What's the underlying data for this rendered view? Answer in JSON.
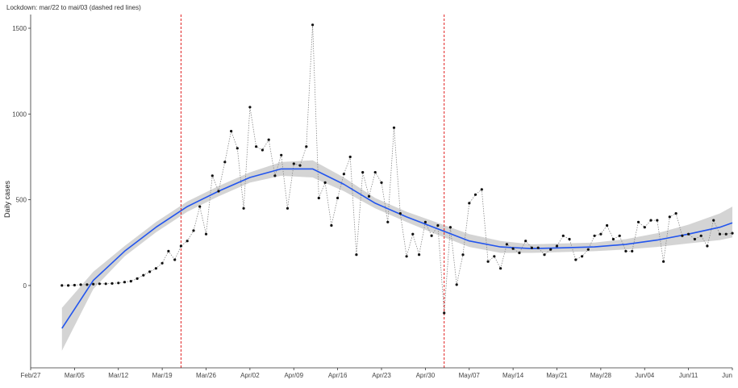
{
  "chart_data": {
    "type": "scatter",
    "title": "Lockdown: mar/22 to mai/03 (dashed red lines)",
    "xlabel": "",
    "ylabel": "Daily cases",
    "x_range": [
      "2020-02-27",
      "2020-06-18"
    ],
    "ylim": [
      -480,
      1580
    ],
    "grid": false,
    "legend": "none",
    "x_ticks": [
      {
        "date": "2020-02-27",
        "label": "Feb/27"
      },
      {
        "date": "2020-03-05",
        "label": "Mar/05"
      },
      {
        "date": "2020-03-12",
        "label": "Mar/12"
      },
      {
        "date": "2020-03-19",
        "label": "Mar/19"
      },
      {
        "date": "2020-03-26",
        "label": "Mar/26"
      },
      {
        "date": "2020-04-02",
        "label": "Apr/02"
      },
      {
        "date": "2020-04-09",
        "label": "Apr/09"
      },
      {
        "date": "2020-04-16",
        "label": "Apr/16"
      },
      {
        "date": "2020-04-23",
        "label": "Apr/23"
      },
      {
        "date": "2020-04-30",
        "label": "Apr/30"
      },
      {
        "date": "2020-05-07",
        "label": "May/07"
      },
      {
        "date": "2020-05-14",
        "label": "May/14"
      },
      {
        "date": "2020-05-21",
        "label": "May/21"
      },
      {
        "date": "2020-05-28",
        "label": "May/28"
      },
      {
        "date": "2020-06-04",
        "label": "Jun/04"
      },
      {
        "date": "2020-06-11",
        "label": "Jun/11"
      },
      {
        "date": "2020-06-18",
        "label": "Jun"
      }
    ],
    "y_ticks": [
      0,
      500,
      1000,
      1500
    ],
    "vlines": [
      {
        "date": "2020-03-22",
        "color": "#e02020",
        "style": "dashed"
      },
      {
        "date": "2020-05-03",
        "color": "#e02020",
        "style": "dashed"
      }
    ],
    "colors": {
      "points": "#111111",
      "connector": "#888888",
      "smooth": "#2255ee",
      "band": "#cccccc"
    },
    "series": [
      {
        "type": "points",
        "x": [
          "2020-03-03",
          "2020-03-04",
          "2020-03-05",
          "2020-03-06",
          "2020-03-07",
          "2020-03-08",
          "2020-03-09",
          "2020-03-10",
          "2020-03-11",
          "2020-03-12",
          "2020-03-13",
          "2020-03-14",
          "2020-03-15",
          "2020-03-16",
          "2020-03-17",
          "2020-03-18",
          "2020-03-19",
          "2020-03-20",
          "2020-03-21",
          "2020-03-22",
          "2020-03-23",
          "2020-03-24",
          "2020-03-25",
          "2020-03-26",
          "2020-03-27",
          "2020-03-28",
          "2020-03-29",
          "2020-03-30",
          "2020-03-31",
          "2020-04-01",
          "2020-04-02",
          "2020-04-03",
          "2020-04-04",
          "2020-04-05",
          "2020-04-06",
          "2020-04-07",
          "2020-04-08",
          "2020-04-09",
          "2020-04-10",
          "2020-04-11",
          "2020-04-12",
          "2020-04-13",
          "2020-04-14",
          "2020-04-15",
          "2020-04-16",
          "2020-04-17",
          "2020-04-18",
          "2020-04-19",
          "2020-04-20",
          "2020-04-21",
          "2020-04-22",
          "2020-04-23",
          "2020-04-24",
          "2020-04-25",
          "2020-04-26",
          "2020-04-27",
          "2020-04-28",
          "2020-04-29",
          "2020-04-30",
          "2020-05-01",
          "2020-05-02",
          "2020-05-03",
          "2020-05-04",
          "2020-05-05",
          "2020-05-06",
          "2020-05-07",
          "2020-05-08",
          "2020-05-09",
          "2020-05-10",
          "2020-05-11",
          "2020-05-12",
          "2020-05-13",
          "2020-05-14",
          "2020-05-15",
          "2020-05-16",
          "2020-05-17",
          "2020-05-18",
          "2020-05-19",
          "2020-05-20",
          "2020-05-21",
          "2020-05-22",
          "2020-05-23",
          "2020-05-24",
          "2020-05-25",
          "2020-05-26",
          "2020-05-27",
          "2020-05-28",
          "2020-05-29",
          "2020-05-30",
          "2020-05-31",
          "2020-06-01",
          "2020-06-02",
          "2020-06-03",
          "2020-06-04",
          "2020-06-05",
          "2020-06-06",
          "2020-06-07",
          "2020-06-08",
          "2020-06-09",
          "2020-06-10",
          "2020-06-11",
          "2020-06-12",
          "2020-06-13",
          "2020-06-14",
          "2020-06-15",
          "2020-06-16",
          "2020-06-17",
          "2020-06-18"
        ],
        "y": [
          0,
          0,
          2,
          5,
          5,
          8,
          10,
          10,
          12,
          15,
          20,
          25,
          40,
          60,
          80,
          100,
          130,
          200,
          150,
          230,
          260,
          320,
          460,
          300,
          640,
          550,
          720,
          900,
          800,
          450,
          1040,
          810,
          790,
          850,
          640,
          760,
          450,
          710,
          700,
          810,
          1520,
          510,
          600,
          350,
          510,
          650,
          750,
          180,
          660,
          520,
          660,
          600,
          370,
          920,
          420,
          170,
          300,
          180,
          370,
          290,
          350,
          -160,
          340,
          5,
          180,
          480,
          530,
          560,
          140,
          170,
          100,
          240,
          215,
          190,
          260,
          220,
          220,
          180,
          210,
          230,
          290,
          270,
          150,
          170,
          210,
          290,
          300,
          350,
          270,
          290,
          200,
          200,
          370,
          340,
          380,
          380,
          140,
          400,
          420,
          290,
          300,
          270,
          290,
          230,
          380,
          300,
          300,
          305
        ]
      },
      {
        "type": "smooth",
        "x": [
          "2020-03-03",
          "2020-03-08",
          "2020-03-13",
          "2020-03-18",
          "2020-03-23",
          "2020-03-28",
          "2020-04-02",
          "2020-04-07",
          "2020-04-12",
          "2020-04-17",
          "2020-04-22",
          "2020-04-27",
          "2020-05-02",
          "2020-05-07",
          "2020-05-12",
          "2020-05-17",
          "2020-05-22",
          "2020-05-27",
          "2020-06-01",
          "2020-06-06",
          "2020-06-11",
          "2020-06-16",
          "2020-06-18"
        ],
        "y": [
          -250,
          30,
          200,
          340,
          460,
          550,
          630,
          680,
          680,
          590,
          480,
          400,
          330,
          260,
          225,
          215,
          220,
          225,
          240,
          265,
          300,
          340,
          365
        ],
        "lower": [
          -380,
          -20,
          170,
          310,
          430,
          520,
          600,
          640,
          630,
          550,
          450,
          370,
          295,
          225,
          190,
          190,
          195,
          200,
          210,
          225,
          245,
          265,
          280
        ],
        "upper": [
          -130,
          80,
          230,
          370,
          490,
          580,
          660,
          720,
          730,
          630,
          510,
          430,
          365,
          300,
          260,
          240,
          245,
          250,
          270,
          305,
          355,
          420,
          460
        ]
      }
    ]
  }
}
